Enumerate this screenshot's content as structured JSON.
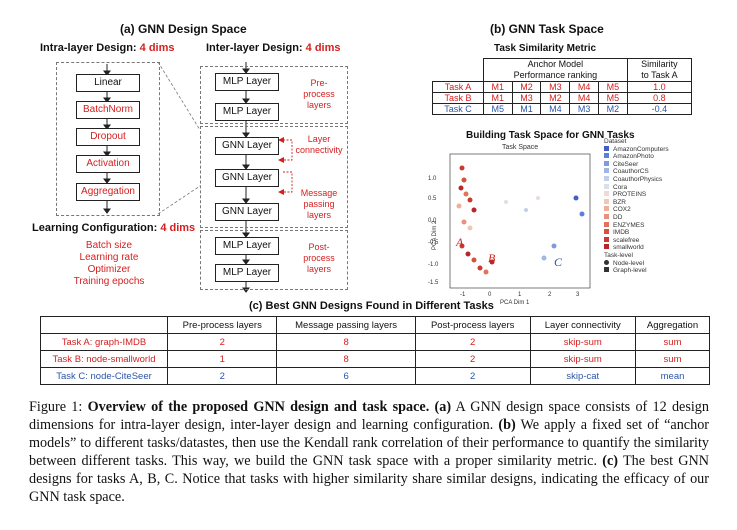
{
  "panel_a": {
    "title": "(a) GNN Design Space",
    "intra_title": "Intra-layer Design:",
    "intra_dims": "4 dims",
    "inter_title": "Inter-layer Design:",
    "inter_dims": "4 dims",
    "intra_boxes": [
      "Linear",
      "BatchNorm",
      "Dropout",
      "Activation",
      "Aggregation"
    ],
    "inter_boxes": [
      "MLP Layer",
      "MLP Layer",
      "GNN Layer",
      "GNN Layer",
      "GNN Layer",
      "MLP Layer",
      "MLP Layer"
    ],
    "labels": {
      "preprocess": "Pre-\nprocess\nlayers",
      "connectivity": "Layer\nconnectivity",
      "message": "Message\npassing\nlayers",
      "postprocess": "Post-\nprocess\nlayers"
    },
    "learning_title": "Learning Configuration:",
    "learning_dims": "4 dims",
    "learning_items": [
      "Batch size",
      "Learning rate",
      "Optimizer",
      "Training epochs"
    ]
  },
  "panel_b": {
    "title": "(b) GNN Task Space",
    "metric_title": "Task Similarity Metric",
    "col_anchor": "Anchor Model\nPerformance ranking",
    "col_sim": "Similarity\nto Task A",
    "rows": [
      {
        "task": "Task A",
        "ranks": [
          "M1",
          "M2",
          "M3",
          "M4",
          "M5"
        ],
        "sim": "1.0",
        "color": "#d41f1f"
      },
      {
        "task": "Task B",
        "ranks": [
          "M1",
          "M3",
          "M2",
          "M4",
          "M5"
        ],
        "sim": "0.8",
        "color": "#d41f1f"
      },
      {
        "task": "Task C",
        "ranks": [
          "M5",
          "M1",
          "M4",
          "M3",
          "M2"
        ],
        "sim": "-0.4",
        "color": "#2a55a8"
      }
    ],
    "space_title": "Building Task Space for GNN Tasks",
    "plot_title": "Task Space",
    "xlabel": "PCA Dim 1",
    "ylabel": "PCA Dim 2",
    "yticks": [
      "1.0",
      "0.5",
      "0.0",
      "-0.5",
      "-1.0",
      "-1.5"
    ],
    "xticks": [
      "-1",
      "0",
      "1",
      "2",
      "3"
    ],
    "point_labels": {
      "a": "A",
      "b": "B",
      "c": "C"
    },
    "legend_title": "Dataset",
    "legend": [
      {
        "name": "AmazonComputers",
        "color": "#3e5fc4"
      },
      {
        "name": "AmazonPhoto",
        "color": "#5f7fd6"
      },
      {
        "name": "CiteSeer",
        "color": "#7f9be0"
      },
      {
        "name": "CoauthorCS",
        "color": "#a2b6e6"
      },
      {
        "name": "CoauthorPhysics",
        "color": "#c3cfe8"
      },
      {
        "name": "Cora",
        "color": "#dddfe6"
      },
      {
        "name": "PROTEINS",
        "color": "#eddcd6"
      },
      {
        "name": "BZR",
        "color": "#efc6b8"
      },
      {
        "name": "COX2",
        "color": "#eeae9c"
      },
      {
        "name": "DD",
        "color": "#e9917c"
      },
      {
        "name": "ENZYMES",
        "color": "#e2725e"
      },
      {
        "name": "IMDB",
        "color": "#d55242"
      },
      {
        "name": "scalefree",
        "color": "#c93a30"
      },
      {
        "name": "smallworld",
        "color": "#b8262a"
      }
    ],
    "level_title": "Task-level",
    "levels": [
      "Node-level",
      "Graph-level"
    ]
  },
  "panel_c": {
    "title": "(c) Best GNN Designs Found in Different Tasks",
    "headers": [
      "",
      "Pre-process layers",
      "Message passing layers",
      "Post-process layers",
      "Layer connectivity",
      "Aggregation"
    ],
    "rows": [
      {
        "task": "Task A: graph-IMDB",
        "cells": [
          "2",
          "8",
          "2",
          "skip-sum",
          "sum"
        ],
        "color": "#d41f1f"
      },
      {
        "task": "Task B: node-smallworld",
        "cells": [
          "1",
          "8",
          "2",
          "skip-sum",
          "sum"
        ],
        "color": "#d41f1f"
      },
      {
        "task": "Task C: node-CiteSeer",
        "cells": [
          "2",
          "6",
          "2",
          "skip-cat",
          "mean"
        ],
        "color": "#2a55a8"
      }
    ]
  },
  "caption": {
    "prefix": "Figure 1:",
    "bold_title": "Overview of the proposed GNN design and task space.",
    "label_a": "(a)",
    "text_a": "A GNN design space consists of 12 design dimensions for intra-layer design, inter-layer design and learning configuration.",
    "label_b": "(b)",
    "text_b": "We apply a fixed set of “anchor models” to different tasks/datastes, then use the Kendall rank correlation of their performance to quantify the similarity between different tasks. This way, we build the GNN task space with a proper similarity metric.",
    "label_c": "(c)",
    "text_c": "The best GNN designs for tasks A, B, C. Notice that tasks with higher similarity share similar designs, indicating the efficacy of our GNN task space."
  }
}
